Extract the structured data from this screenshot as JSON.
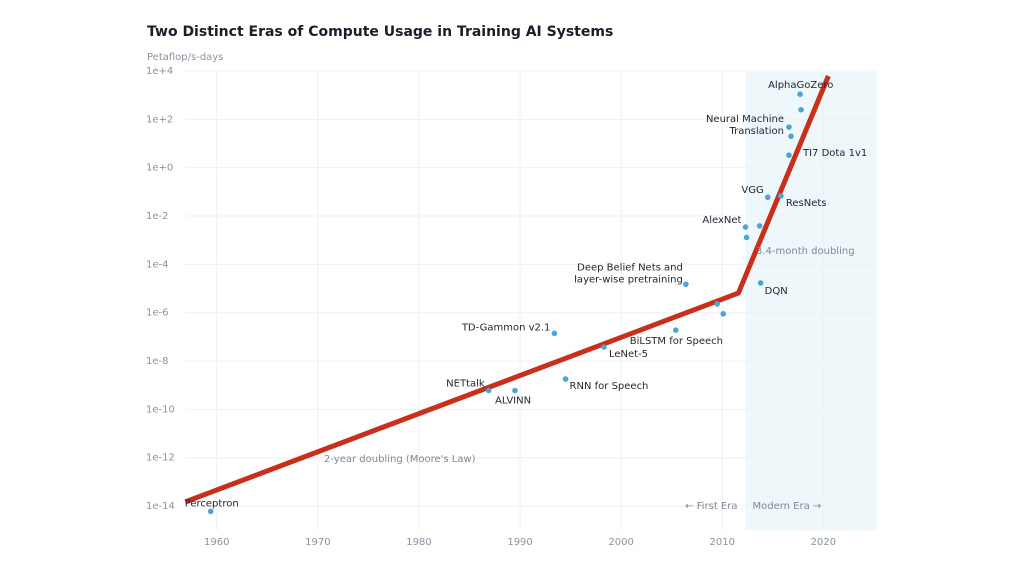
{
  "chart_data": {
    "type": "scatter",
    "title": "Two Distinct Eras of Compute Usage in Training AI Systems",
    "y_label": "Petaflop/s-days",
    "log_y": true,
    "grid": true,
    "color": "#4ba6d6",
    "xlim": [
      1953,
      2026
    ],
    "ylim": [
      1e-15,
      30000
    ],
    "xticks": [
      1960,
      1970,
      1980,
      1990,
      2000,
      2010,
      2020
    ],
    "yticks": [
      {
        "value": 1e-14,
        "label": "1e-14"
      },
      {
        "value": 1e-12,
        "label": "1e-12"
      },
      {
        "value": 1e-10,
        "label": "1e-10"
      },
      {
        "value": 1e-08,
        "label": "1e-8"
      },
      {
        "value": 1e-06,
        "label": "1e-6"
      },
      {
        "value": 0.0001,
        "label": "1e-4"
      },
      {
        "value": 0.01,
        "label": "1e-2"
      },
      {
        "value": 1,
        "label": "1e+0"
      },
      {
        "value": 100,
        "label": "1e+2"
      },
      {
        "value": 10000,
        "label": "1e+4"
      }
    ],
    "x": [
      1959.4,
      1986.9,
      1989.5,
      1993.4,
      1994.5,
      1998.3,
      2005.4,
      2006.4,
      2009.5,
      2010.1,
      2012.3,
      2012.4,
      2013.7,
      2013.8,
      2014.5,
      2015.8,
      2016.6,
      2016.6,
      2016.8,
      2017.7,
      2017.8
    ],
    "y": [
      6e-15,
      6e-10,
      6e-10,
      1.4e-07,
      1.8e-09,
      3.8e-08,
      1.9e-07,
      1.5e-05,
      2.3e-06,
      9e-07,
      0.0035,
      0.0013,
      0.0039,
      1.7e-05,
      0.06,
      0.068,
      3.3,
      48,
      20,
      1100,
      250
    ],
    "labels": [
      [
        "Perceptron"
      ],
      [
        "NETtalk"
      ],
      [
        "ALVINN"
      ],
      [
        "TD-Gammon v2.1"
      ],
      [
        "RNN for Speech"
      ],
      [
        "LeNet-5"
      ],
      [
        "BiLSTM for Speech"
      ],
      [
        "Deep Belief Nets and",
        "layer-wise pretraining"
      ],
      null,
      null,
      [
        "AlexNet"
      ],
      null,
      null,
      [
        "DQN"
      ],
      [
        "VGG"
      ],
      [
        "ResNets"
      ],
      [
        "TI7 Dota 1v1"
      ],
      [
        "Neural Machine",
        "Translation"
      ],
      null,
      [
        "AlphaGoZero"
      ],
      null
    ],
    "trend": {
      "color": "#c8301c",
      "x": [
        1956.9,
        2011.6,
        2020.5
      ],
      "y": [
        1.5e-14,
        6.5e-06,
        6200
      ]
    },
    "annotations": [
      "2-year doubling (Moore's Law)",
      "3.4-month doubling"
    ],
    "eras": {
      "start": 2012.3,
      "labels": [
        "← First Era",
        "Modern Era →"
      ],
      "color": "#eef8fb"
    }
  }
}
